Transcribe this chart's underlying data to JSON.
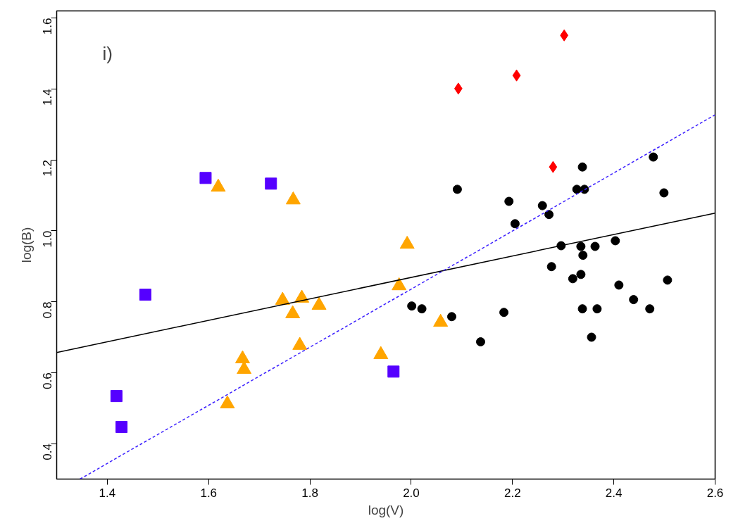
{
  "chart_data": {
    "type": "scatter",
    "xlabel": "log(V)",
    "ylabel": "log(B)",
    "annotations": [
      "i)"
    ],
    "xlim": [
      1.3,
      2.6
    ],
    "ylim": [
      0.3,
      1.62
    ],
    "xticks": [
      1.4,
      1.6,
      1.8,
      {
        "value": 2,
        "label": "2.0"
      },
      2.2,
      2.4,
      2.6
    ],
    "yticks": [
      0.4,
      0.6,
      0.8,
      {
        "value": 1,
        "label": "1.0"
      },
      1.2,
      1.4,
      1.6
    ],
    "grid": false,
    "series": [
      {
        "marker": "circle",
        "color": "#000000",
        "x": [
          2.091,
          2.001,
          2.021,
          2.08,
          2.137,
          2.183,
          2.193,
          2.205,
          2.259,
          2.272,
          2.277,
          2.296,
          2.319,
          2.327,
          2.338,
          2.342,
          2.335,
          2.335,
          2.339,
          2.338,
          2.356,
          2.363,
          2.367,
          2.403,
          2.41,
          2.439,
          2.471,
          2.478,
          2.499,
          2.506
        ],
        "values": [
          1.117,
          0.788,
          0.78,
          0.758,
          0.687,
          0.77,
          1.083,
          1.02,
          1.071,
          1.046,
          0.899,
          0.958,
          0.865,
          1.117,
          1.18,
          1.117,
          0.956,
          0.877,
          0.931,
          0.78,
          0.7,
          0.956,
          0.78,
          0.972,
          0.847,
          0.806,
          0.78,
          1.208,
          1.107,
          0.861
        ]
      },
      {
        "marker": "diamond",
        "color": "#ff0000",
        "x": [
          2.093,
          2.208,
          2.302,
          2.28
        ],
        "values": [
          1.401,
          1.438,
          1.551,
          1.18
        ]
      },
      {
        "marker": "square",
        "color": "#5500ff",
        "x": [
          1.594,
          1.723,
          1.475,
          1.418,
          1.428,
          1.965
        ],
        "values": [
          1.149,
          1.133,
          0.82,
          0.534,
          0.447,
          0.603
        ]
      },
      {
        "marker": "triangle",
        "color": "#ffa500",
        "x": [
          1.619,
          1.767,
          1.992,
          1.746,
          1.784,
          1.818,
          1.766,
          1.976,
          1.78,
          1.667,
          1.67,
          1.637,
          1.94,
          2.058
        ],
        "values": [
          1.123,
          1.087,
          0.962,
          0.804,
          0.81,
          0.79,
          0.766,
          0.845,
          0.677,
          0.639,
          0.609,
          0.512,
          0.651,
          0.742
        ]
      },
      {
        "type": "line",
        "line_style": "solid",
        "color": "#000000",
        "x": [
          1.3,
          2.6
        ],
        "values": [
          0.657,
          1.05
        ]
      },
      {
        "type": "line",
        "line_style": "dashed",
        "color": "#3b1fff",
        "x": [
          1.346,
          2.6
        ],
        "values": [
          0.3,
          1.327
        ]
      }
    ]
  }
}
